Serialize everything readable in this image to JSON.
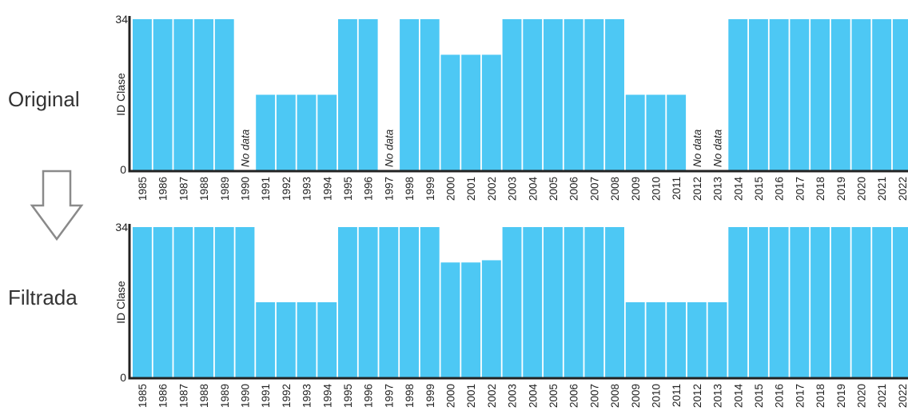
{
  "colors": {
    "bar": "#4DC8F4",
    "bar_stroke": "#ffffff",
    "axis": "#222222",
    "arrow": "#8a8a8a"
  },
  "icons": {
    "transition_arrow": "down-arrow-icon"
  },
  "chart_data": [
    {
      "type": "bar",
      "row_label": "Original",
      "ylabel": "ID Clase",
      "ylim": [
        0,
        34
      ],
      "yticks": [
        "0",
        "34"
      ],
      "categories": [
        "1985",
        "1986",
        "1987",
        "1988",
        "1989",
        "1990",
        "1991",
        "1992",
        "1993",
        "1994",
        "1995",
        "1996",
        "1997",
        "1998",
        "1999",
        "2000",
        "2001",
        "2002",
        "2003",
        "2004",
        "2005",
        "2006",
        "2007",
        "2008",
        "2009",
        "2010",
        "2011",
        "2012",
        "2013",
        "2014",
        "2015",
        "2016",
        "2017",
        "2018",
        "2019",
        "2020",
        "2021",
        "2022"
      ],
      "values": [
        34,
        34,
        34,
        34,
        34,
        null,
        17,
        17,
        17,
        17,
        34,
        34,
        null,
        34,
        34,
        26,
        26,
        26,
        34,
        34,
        34,
        34,
        34,
        34,
        17,
        17,
        17,
        null,
        null,
        34,
        34,
        34,
        34,
        34,
        34,
        34,
        34,
        34
      ],
      "missing_label": "No data"
    },
    {
      "type": "bar",
      "row_label": "Filtrada",
      "ylabel": "ID Clase",
      "ylim": [
        0,
        34
      ],
      "yticks": [
        "0",
        "34"
      ],
      "categories": [
        "1985",
        "1986",
        "1987",
        "1988",
        "1989",
        "1990",
        "1991",
        "1992",
        "1993",
        "1994",
        "1995",
        "1996",
        "1997",
        "1998",
        "1999",
        "2000",
        "2001",
        "2002",
        "2003",
        "2004",
        "2005",
        "2006",
        "2007",
        "2008",
        "2009",
        "2010",
        "2011",
        "2012",
        "2013",
        "2014",
        "2015",
        "2016",
        "2017",
        "2018",
        "2019",
        "2020",
        "2021",
        "2022"
      ],
      "values": [
        34,
        34,
        34,
        34,
        34,
        34,
        17,
        17,
        17,
        17,
        34,
        34,
        34,
        34,
        34,
        26,
        26,
        26.5,
        34,
        34,
        34,
        34,
        34,
        34,
        17,
        17,
        17,
        17,
        17,
        34,
        34,
        34,
        34,
        34,
        34,
        34,
        34,
        34
      ]
    }
  ]
}
